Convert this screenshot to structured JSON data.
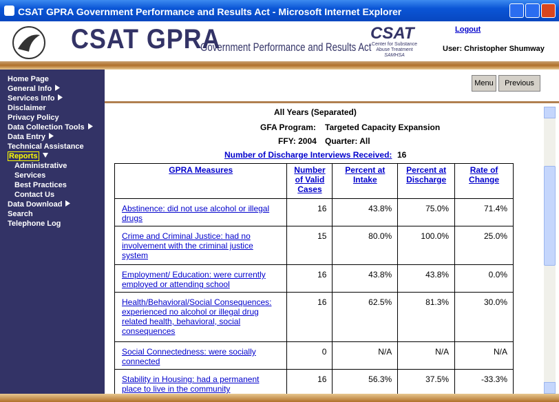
{
  "window": {
    "title": "CSAT GPRA Government Performance and Results Act - Microsoft Internet Explorer"
  },
  "header": {
    "site_title": "CSAT GPRA",
    "subtitle": "Government Performance and Results Act",
    "logo_text": "CSAT",
    "logo_caption": [
      "Center for Substance",
      "Abuse Treatment",
      "SAMHSA"
    ],
    "logout": "Logout",
    "user": "User: Christopher Shumway"
  },
  "nav": [
    {
      "label": "Home Page"
    },
    {
      "label": "General Info",
      "arrow": "right"
    },
    {
      "label": "Services Info",
      "arrow": "right"
    },
    {
      "label": "Disclaimer"
    },
    {
      "label": "Privacy Policy"
    },
    {
      "label": "Data Collection Tools",
      "arrow": "right"
    },
    {
      "label": "Data Entry",
      "arrow": "right"
    },
    {
      "label": "Technical Assistance"
    },
    {
      "label": "Reports",
      "arrow": "down",
      "selected": true
    },
    {
      "label": "Administrative",
      "sub": true
    },
    {
      "label": "Services",
      "sub": true
    },
    {
      "label": "Best Practices",
      "sub": true
    },
    {
      "label": "Contact Us",
      "sub": true
    },
    {
      "label": "Data Download",
      "arrow": "right"
    },
    {
      "label": "Search"
    },
    {
      "label": "Telephone Log"
    }
  ],
  "buttons": [
    "Menu",
    "Previous"
  ],
  "report": {
    "scope": "All Years (Separated)",
    "program_label": "GFA Program:",
    "program": "Targeted Capacity Expansion",
    "ffy": "FFY: 2004",
    "quarter": "Quarter: All",
    "interviews_label": "Number of Discharge Interviews Received:",
    "interviews": 16
  },
  "table": {
    "headers": [
      "GPRA Measures",
      "Number of Valid Cases",
      "Percent at Intake",
      "Percent at Discharge",
      "Rate of Change"
    ],
    "rows": [
      [
        "Abstinence:  did not use alcohol or illegal drugs",
        16,
        "43.8%",
        "75.0%",
        "71.4%"
      ],
      [
        "Crime and Criminal Justice:  had no involvement with the criminal justice system",
        15,
        "80.0%",
        "100.0%",
        "25.0%"
      ],
      [
        "Employment/ Education:  were currently employed or attending school",
        16,
        "43.8%",
        "43.8%",
        "0.0%"
      ],
      [
        "Health/Behavioral/Social Consequences:  experienced no alcohol or illegal drug related health, behavioral, social consequences",
        16,
        "62.5%",
        "81.3%",
        "30.0%"
      ],
      [
        "Social Connectedness:  were socially connected",
        0,
        "N/A",
        "N/A",
        "N/A"
      ],
      [
        "Stability in Housing:  had a permanent place to live in the community",
        16,
        "56.3%",
        "37.5%",
        "-33.3%"
      ]
    ]
  }
}
